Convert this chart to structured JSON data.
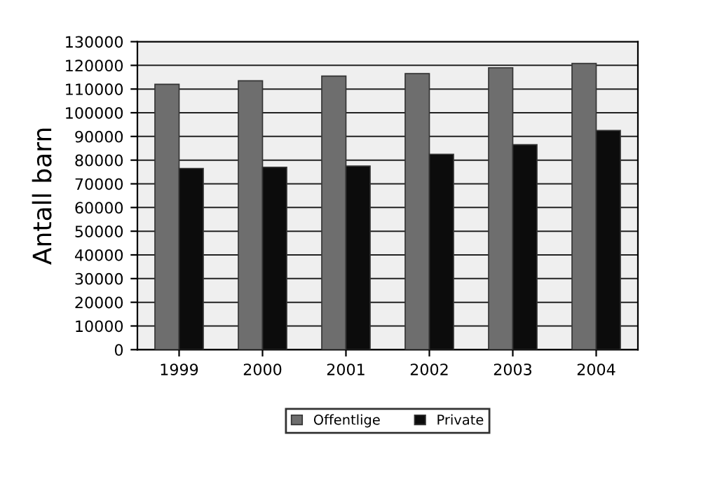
{
  "chart_data": {
    "type": "bar",
    "ylabel": "Antall barn",
    "categories": [
      "1999",
      "2000",
      "2001",
      "2002",
      "2003",
      "2004"
    ],
    "series": [
      {
        "name": "Offentlige",
        "color": "#6e6e6e",
        "values": [
          112000,
          113500,
          115500,
          116500,
          119000,
          120800
        ]
      },
      {
        "name": "Private",
        "color": "#0c0c0c",
        "values": [
          76500,
          77000,
          77500,
          82500,
          86500,
          92500
        ]
      }
    ],
    "ylim": [
      0,
      130000
    ],
    "yticks": [
      0,
      10000,
      20000,
      30000,
      40000,
      50000,
      60000,
      70000,
      80000,
      90000,
      100000,
      110000,
      120000,
      130000
    ],
    "grid": "y",
    "legend": "bottom"
  }
}
